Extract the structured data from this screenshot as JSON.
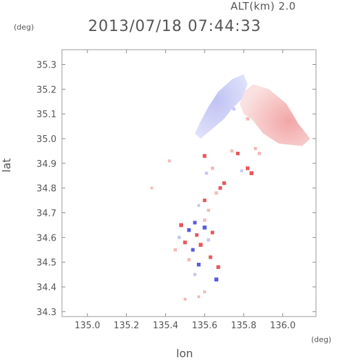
{
  "header": {
    "altitude_label": "ALT(km) 2.0",
    "timestamp": "2013/07/18 07:44:33",
    "y_unit": "(deg)",
    "x_unit": "(deg)"
  },
  "chart_data": {
    "type": "heatmap",
    "title": "2013/07/18 07:44:33",
    "xlabel": "lon",
    "ylabel": "lat",
    "xlim": [
      134.87,
      136.17
    ],
    "ylim": [
      34.28,
      35.36
    ],
    "x_ticks": [
      "135.0",
      "135.2",
      "135.4",
      "135.6",
      "135.8",
      "136.0"
    ],
    "y_ticks": [
      "34.3",
      "34.4",
      "34.5",
      "34.6",
      "34.7",
      "34.8",
      "34.9",
      "35.0",
      "35.1",
      "35.2",
      "35.3"
    ],
    "colors": {
      "positive": "#f5b8b8",
      "negative": "#c6c8f5",
      "strong_positive": "#e8585a",
      "strong_negative": "#5a5ae0"
    },
    "regions": [
      {
        "name": "northeast-positive-band",
        "sign": "positive",
        "polygon": [
          [
            135.85,
            35.22
          ],
          [
            135.93,
            35.2
          ],
          [
            136.02,
            35.14
          ],
          [
            136.08,
            35.06
          ],
          [
            136.14,
            35.0
          ],
          [
            136.1,
            34.97
          ],
          [
            135.98,
            34.98
          ],
          [
            135.9,
            35.02
          ],
          [
            135.84,
            35.08
          ],
          [
            135.8,
            35.1
          ],
          [
            135.78,
            35.14
          ],
          [
            135.8,
            35.19
          ]
        ]
      },
      {
        "name": "northwest-negative-band",
        "sign": "negative",
        "polygon": [
          [
            135.67,
            35.19
          ],
          [
            135.74,
            35.24
          ],
          [
            135.8,
            35.26
          ],
          [
            135.82,
            35.22
          ],
          [
            135.79,
            35.16
          ],
          [
            135.74,
            35.12
          ],
          [
            135.7,
            35.08
          ],
          [
            135.64,
            35.04
          ],
          [
            135.58,
            35.0
          ],
          [
            135.55,
            35.02
          ],
          [
            135.58,
            35.07
          ],
          [
            135.62,
            35.13
          ]
        ]
      },
      {
        "name": "southern-cluster",
        "sign": "mixed",
        "polygon": [
          [
            135.46,
            34.68
          ],
          [
            135.56,
            34.7
          ],
          [
            135.64,
            34.68
          ],
          [
            135.66,
            34.6
          ],
          [
            135.64,
            34.5
          ],
          [
            135.58,
            34.46
          ],
          [
            135.5,
            34.48
          ],
          [
            135.46,
            34.56
          ]
        ]
      }
    ],
    "points": [
      {
        "lon": 135.82,
        "lat": 35.08,
        "v": 0.6
      },
      {
        "lon": 135.75,
        "lat": 35.12,
        "v": -0.5
      },
      {
        "lon": 135.86,
        "lat": 34.96,
        "v": 0.5
      },
      {
        "lon": 135.88,
        "lat": 34.94,
        "v": 0.6
      },
      {
        "lon": 135.74,
        "lat": 34.95,
        "v": 0.5
      },
      {
        "lon": 135.77,
        "lat": 34.94,
        "v": 0.7
      },
      {
        "lon": 135.82,
        "lat": 34.88,
        "v": 0.8
      },
      {
        "lon": 135.79,
        "lat": 34.87,
        "v": -0.4
      },
      {
        "lon": 135.84,
        "lat": 34.86,
        "v": 0.9
      },
      {
        "lon": 135.6,
        "lat": 34.93,
        "v": 0.8
      },
      {
        "lon": 135.64,
        "lat": 34.88,
        "v": 0.6
      },
      {
        "lon": 135.61,
        "lat": 34.86,
        "v": -0.5
      },
      {
        "lon": 135.68,
        "lat": 34.8,
        "v": 0.7
      },
      {
        "lon": 135.66,
        "lat": 34.78,
        "v": 0.6
      },
      {
        "lon": 135.7,
        "lat": 34.82,
        "v": 0.8
      },
      {
        "lon": 135.6,
        "lat": 34.75,
        "v": 0.7
      },
      {
        "lon": 135.57,
        "lat": 34.73,
        "v": -0.4
      },
      {
        "lon": 135.62,
        "lat": 34.71,
        "v": 0.5
      },
      {
        "lon": 135.48,
        "lat": 34.65,
        "v": 0.9
      },
      {
        "lon": 135.52,
        "lat": 34.63,
        "v": -0.8
      },
      {
        "lon": 135.56,
        "lat": 34.61,
        "v": 0.7
      },
      {
        "lon": 135.6,
        "lat": 34.64,
        "v": -0.9
      },
      {
        "lon": 135.5,
        "lat": 34.58,
        "v": 0.8
      },
      {
        "lon": 135.54,
        "lat": 34.55,
        "v": -0.7
      },
      {
        "lon": 135.58,
        "lat": 34.57,
        "v": 0.9
      },
      {
        "lon": 135.62,
        "lat": 34.59,
        "v": -0.6
      },
      {
        "lon": 135.52,
        "lat": 34.51,
        "v": 0.6
      },
      {
        "lon": 135.57,
        "lat": 34.49,
        "v": -0.8
      },
      {
        "lon": 135.63,
        "lat": 34.52,
        "v": 0.7
      },
      {
        "lon": 135.67,
        "lat": 34.48,
        "v": 0.8
      },
      {
        "lon": 135.66,
        "lat": 34.43,
        "v": -0.9
      },
      {
        "lon": 135.55,
        "lat": 34.45,
        "v": -0.5
      },
      {
        "lon": 135.47,
        "lat": 34.6,
        "v": -0.6
      },
      {
        "lon": 135.45,
        "lat": 34.55,
        "v": 0.6
      },
      {
        "lon": 135.64,
        "lat": 34.62,
        "v": 0.7
      },
      {
        "lon": 135.55,
        "lat": 34.66,
        "v": -0.7
      },
      {
        "lon": 135.6,
        "lat": 34.67,
        "v": 0.6
      },
      {
        "lon": 135.42,
        "lat": 34.91,
        "v": 0.4
      },
      {
        "lon": 135.33,
        "lat": 34.8,
        "v": 0.3
      },
      {
        "lon": 135.5,
        "lat": 34.35,
        "v": 0.4
      },
      {
        "lon": 135.57,
        "lat": 34.36,
        "v": 0.3
      },
      {
        "lon": 135.6,
        "lat": 34.38,
        "v": 0.4
      }
    ]
  }
}
